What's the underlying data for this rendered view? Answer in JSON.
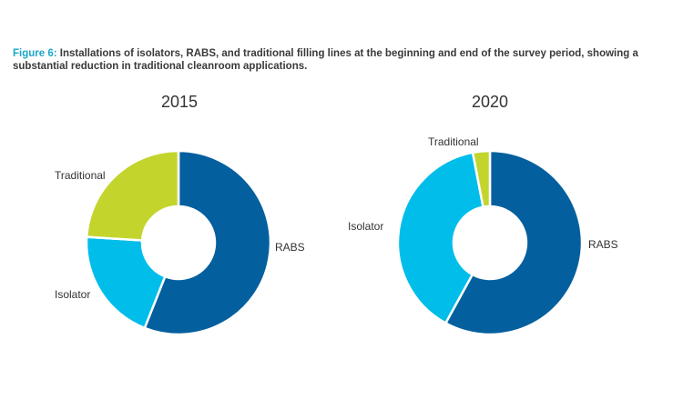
{
  "caption": {
    "figure_label": "Figure 6:",
    "text": " Installations of isolators, RABS, and traditional filling lines at the beginning and end of the survey period, showing a substantial reduction in traditional cleanroom applications."
  },
  "colors": {
    "RABS": "#035f9e",
    "Isolator": "#00bde9",
    "Traditional": "#c3d52d"
  },
  "chart_data": [
    {
      "type": "pie",
      "title": "2015",
      "labels": [
        "RABS",
        "Isolator",
        "Traditional"
      ],
      "values": [
        56,
        20,
        24
      ]
    },
    {
      "type": "pie",
      "title": "2020",
      "labels": [
        "RABS",
        "Isolator",
        "Traditional"
      ],
      "values": [
        58,
        39,
        3
      ]
    }
  ]
}
